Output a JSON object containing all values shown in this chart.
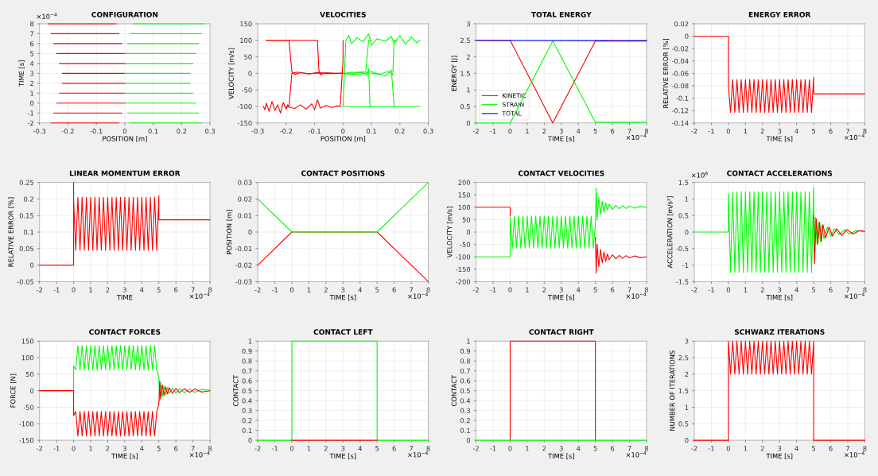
{
  "chart_data": [
    {
      "type": "line",
      "title": "CONFIGURATION",
      "xlabel": "POSITION [m]",
      "ylabel": "TIME [s]",
      "xlim": [
        -0.3,
        0.3
      ],
      "xticks": [
        -0.3,
        -0.2,
        -0.1,
        0,
        0.1,
        0.2,
        0.3
      ],
      "ylim": [
        -2,
        8
      ],
      "yticks": [
        -2,
        -1,
        0,
        1,
        2,
        3,
        4,
        5,
        6,
        7,
        8
      ],
      "grid": true,
      "annotations": [
        "×10$^{−4}$"
      ],
      "series": [
        {
          "color": "#ff0000",
          "x": [
            -0.27,
            -0.03
          ],
          "values": [
            8,
            8
          ]
        },
        {
          "color": "#ff0000",
          "x": [
            -0.26,
            -0.02
          ],
          "values": [
            7,
            7
          ]
        },
        {
          "color": "#ff0000",
          "x": [
            -0.25,
            -0.01
          ],
          "values": [
            6,
            6
          ]
        },
        {
          "color": "#ff0000",
          "x": [
            -0.24,
            0
          ],
          "values": [
            5,
            5
          ]
        },
        {
          "color": "#ff0000",
          "x": [
            -0.23,
            0
          ],
          "values": [
            4,
            4
          ]
        },
        {
          "color": "#ff0000",
          "x": [
            -0.22,
            0
          ],
          "values": [
            3,
            3
          ]
        },
        {
          "color": "#ff0000",
          "x": [
            -0.22,
            0
          ],
          "values": [
            2,
            2
          ]
        },
        {
          "color": "#ff0000",
          "x": [
            -0.23,
            0
          ],
          "values": [
            1,
            1
          ]
        },
        {
          "color": "#ff0000",
          "x": [
            -0.24,
            0
          ],
          "values": [
            0,
            0
          ]
        },
        {
          "color": "#ff0000",
          "x": [
            -0.25,
            -0.01
          ],
          "values": [
            -1,
            -1
          ]
        },
        {
          "color": "#ff0000",
          "x": [
            -0.26,
            -0.02
          ],
          "values": [
            -2,
            -2
          ]
        },
        {
          "color": "#00ff00",
          "x": [
            0.03,
            0.28
          ],
          "values": [
            8,
            8
          ]
        },
        {
          "color": "#00ff00",
          "x": [
            0.02,
            0.27
          ],
          "values": [
            7,
            7
          ]
        },
        {
          "color": "#00ff00",
          "x": [
            0.01,
            0.26
          ],
          "values": [
            6,
            6
          ]
        },
        {
          "color": "#00ff00",
          "x": [
            0,
            0.25
          ],
          "values": [
            5,
            5
          ]
        },
        {
          "color": "#00ff00",
          "x": [
            0,
            0.24
          ],
          "values": [
            4,
            4
          ]
        },
        {
          "color": "#00ff00",
          "x": [
            0,
            0.23
          ],
          "values": [
            3,
            3
          ]
        },
        {
          "color": "#00ff00",
          "x": [
            0,
            0.23
          ],
          "values": [
            2,
            2
          ]
        },
        {
          "color": "#00ff00",
          "x": [
            0,
            0.24
          ],
          "values": [
            1,
            1
          ]
        },
        {
          "color": "#00ff00",
          "x": [
            0,
            0.25
          ],
          "values": [
            0,
            0
          ]
        },
        {
          "color": "#00ff00",
          "x": [
            0.01,
            0.26
          ],
          "values": [
            -1,
            -1
          ]
        },
        {
          "color": "#00ff00",
          "x": [
            0.02,
            0.27
          ],
          "values": [
            -2,
            -2
          ]
        }
      ]
    },
    {
      "type": "line",
      "title": "VELOCITIES",
      "xlabel": "POSITION [m]",
      "ylabel": "VELOCITY [m/s]",
      "xlim": [
        -0.3,
        0.3
      ],
      "xticks": [
        -0.3,
        -0.2,
        -0.1,
        0,
        0.1,
        0.2,
        0.3
      ],
      "ylim": [
        -150,
        150
      ],
      "yticks": [
        -150,
        -100,
        -50,
        0,
        50,
        100,
        150
      ],
      "grid": true,
      "series": [
        {
          "color": "#ff0000",
          "x": [
            -0.27,
            -0.19,
            -0.185,
            -0.18,
            -0.17,
            -0.15,
            -0.12,
            -0.08,
            -0.04,
            0
          ],
          "values": [
            100,
            100,
            50,
            5,
            -3,
            2,
            -1,
            1,
            0,
            0
          ]
        },
        {
          "color": "#ff0000",
          "x": [
            -0.27,
            -0.09,
            -0.085,
            -0.08,
            -0.06,
            -0.03,
            0
          ],
          "values": [
            100,
            100,
            10,
            -4,
            2,
            0,
            0
          ]
        },
        {
          "color": "#ff0000",
          "x": [
            -0.28,
            -0.275,
            -0.27,
            -0.26,
            -0.25,
            -0.24,
            -0.23,
            -0.22,
            -0.21,
            -0.2,
            -0.195,
            -0.19,
            -0.185,
            -0.18,
            -0.16,
            -0.12,
            -0.09,
            -0.05,
            0
          ],
          "values": [
            -100,
            -110,
            -90,
            -115,
            -85,
            -112,
            -95,
            -120,
            -88,
            -108,
            -95,
            -100,
            -50,
            0,
            4,
            -2,
            3,
            -1,
            0
          ]
        },
        {
          "color": "#ff0000",
          "x": [
            -0.2,
            -0.17,
            -0.15,
            -0.13,
            -0.11,
            -0.1,
            -0.09,
            -0.08,
            -0.06,
            -0.04,
            -0.02,
            -0.01,
            0,
            0
          ],
          "values": [
            -100,
            -106,
            -95,
            -108,
            -92,
            -110,
            -80,
            -105,
            -97,
            -103,
            -98,
            -100,
            40,
            100
          ]
        },
        {
          "color": "#00ff00",
          "x": [
            0,
            0.27
          ],
          "values": [
            -100,
            -100
          ]
        },
        {
          "color": "#00ff00",
          "x": [
            0,
            0.03,
            0.06,
            0.085,
            0.09,
            0.095
          ],
          "values": [
            0,
            -2,
            3,
            -3,
            15,
            -100
          ]
        },
        {
          "color": "#00ff00",
          "x": [
            0,
            0.05,
            0.1,
            0.15,
            0.17,
            0.18
          ],
          "values": [
            0,
            -4,
            5,
            -8,
            10,
            -100
          ]
        },
        {
          "color": "#00ff00",
          "x": [
            0,
            0.01,
            0.02,
            0.03,
            0.05,
            0.07,
            0.09,
            0.1,
            0.12,
            0.15,
            0.17,
            0.18,
            0.2,
            0.22,
            0.24,
            0.26,
            0.27
          ],
          "values": [
            -100,
            100,
            115,
            90,
            108,
            95,
            120,
            85,
            105,
            97,
            112,
            90,
            115,
            88,
            110,
            92,
            100
          ]
        },
        {
          "color": "#00ff00",
          "x": [
            0,
            0.04,
            0.08,
            0.09,
            0.1
          ],
          "values": [
            0,
            3,
            5,
            100,
            100
          ]
        },
        {
          "color": "#00ff00",
          "x": [
            0.1,
            0.13,
            0.16,
            0.175,
            0.18,
            0.19
          ],
          "values": [
            0,
            -3,
            6,
            -5,
            100,
            100
          ]
        }
      ]
    },
    {
      "type": "line",
      "title": "TOTAL ENERGY",
      "xlabel": "TIME [s]",
      "ylabel": "ENERGY [J]",
      "xlim": [
        -2,
        8
      ],
      "xticks": [
        -2,
        -1,
        0,
        1,
        2,
        3,
        4,
        5,
        6,
        7,
        8
      ],
      "ylim": [
        0,
        3
      ],
      "yticks": [
        0,
        0.5,
        1,
        1.5,
        2,
        2.5,
        3
      ],
      "grid": true,
      "legend": "bottom left",
      "annotations": [
        "×10$^{−4}$"
      ],
      "series": [
        {
          "name": "KINETIC",
          "color": "#ff0000",
          "x": [
            -2,
            0,
            2.5,
            5,
            8
          ],
          "values": [
            2.5,
            2.5,
            0,
            2.48,
            2.48
          ]
        },
        {
          "name": "STRAIN",
          "color": "#00ff00",
          "x": [
            -2,
            0,
            2.5,
            5,
            8
          ],
          "values": [
            0,
            0,
            2.48,
            0.02,
            0.02
          ]
        },
        {
          "name": "TOTAL",
          "color": "#0000ff",
          "x": [
            -2,
            8
          ],
          "values": [
            2.5,
            2.49
          ]
        }
      ]
    },
    {
      "type": "line",
      "title": "ENERGY ERROR",
      "xlabel": "TIME [s]",
      "ylabel": "RELATIVE ERROR [%]",
      "xlim": [
        -2,
        8
      ],
      "xticks": [
        -2,
        -1,
        0,
        1,
        2,
        3,
        4,
        5,
        6,
        7,
        8
      ],
      "ylim": [
        -0.14,
        0.02
      ],
      "yticks": [
        -0.14,
        -0.12,
        -0.1,
        -0.08,
        -0.06,
        -0.04,
        -0.02,
        0,
        0.02
      ],
      "grid": true,
      "annotations": [
        "×10$^{−4}$"
      ],
      "series": [
        {
          "color": "#ff0000",
          "x": [
            -2,
            0,
            0,
            0.125,
            0.25,
            0.375,
            0.5,
            0.625,
            0.75,
            0.875,
            1,
            1.125,
            1.25,
            1.375,
            1.5,
            1.625,
            1.75,
            1.875,
            2,
            2.125,
            2.25,
            2.375,
            2.5,
            2.625,
            2.75,
            2.875,
            3,
            3.125,
            3.25,
            3.375,
            3.5,
            3.625,
            3.75,
            3.875,
            4,
            4.125,
            4.25,
            4.375,
            4.5,
            4.625,
            4.75,
            4.875,
            5,
            5,
            8
          ],
          "values": [
            0,
            0,
            -0.08,
            -0.123,
            -0.07,
            -0.123,
            -0.07,
            -0.123,
            -0.07,
            -0.123,
            -0.07,
            -0.123,
            -0.07,
            -0.123,
            -0.07,
            -0.123,
            -0.07,
            -0.123,
            -0.07,
            -0.123,
            -0.07,
            -0.123,
            -0.07,
            -0.123,
            -0.07,
            -0.123,
            -0.07,
            -0.123,
            -0.07,
            -0.123,
            -0.07,
            -0.123,
            -0.07,
            -0.123,
            -0.07,
            -0.123,
            -0.07,
            -0.123,
            -0.07,
            -0.123,
            -0.07,
            -0.123,
            -0.066,
            -0.093,
            -0.093
          ]
        }
      ]
    },
    {
      "type": "line",
      "title": "LINEAR MOMENTUM ERROR",
      "xlabel": "TIME",
      "ylabel": "RELATIVE ERROR [%]",
      "xlim": [
        -2,
        8
      ],
      "xticks": [
        -2,
        -1,
        0,
        1,
        2,
        3,
        4,
        5,
        6,
        7,
        8
      ],
      "ylim": [
        -0.05,
        0.25
      ],
      "yticks": [
        -0.05,
        0,
        0.05,
        0.1,
        0.15,
        0.2,
        0.25
      ],
      "grid": true,
      "annotations": [
        "×10$^{−4}$"
      ],
      "series": [
        {
          "color": "#ff0000",
          "x": [
            -2,
            0,
            0,
            0,
            0.125,
            0.25,
            0.375,
            0.5,
            0.625,
            0.75,
            0.875,
            1,
            1.125,
            1.25,
            1.375,
            1.5,
            1.625,
            1.75,
            1.875,
            2,
            2.125,
            2.25,
            2.375,
            2.5,
            2.625,
            2.75,
            2.875,
            3,
            3.125,
            3.25,
            3.375,
            3.5,
            3.625,
            3.75,
            3.875,
            4,
            4.125,
            4.25,
            4.375,
            4.5,
            4.625,
            4.75,
            4.875,
            5,
            5,
            8
          ],
          "values": [
            0,
            0,
            0.25,
            0.2,
            0.045,
            0.205,
            0.045,
            0.205,
            0.045,
            0.205,
            0.045,
            0.205,
            0.045,
            0.205,
            0.045,
            0.205,
            0.045,
            0.205,
            0.045,
            0.205,
            0.045,
            0.205,
            0.045,
            0.205,
            0.045,
            0.205,
            0.045,
            0.205,
            0.045,
            0.205,
            0.045,
            0.205,
            0.045,
            0.205,
            0.045,
            0.205,
            0.045,
            0.205,
            0.045,
            0.205,
            0.045,
            0.205,
            0.045,
            0.21,
            0.137,
            0.137
          ]
        }
      ]
    },
    {
      "type": "line",
      "title": "CONTACT POSITIONS",
      "xlabel": "TIME [s]",
      "ylabel": "POSITION [m]",
      "xlim": [
        -2,
        8
      ],
      "xticks": [
        -2,
        -1,
        0,
        1,
        2,
        3,
        4,
        5,
        6,
        7,
        8
      ],
      "ylim": [
        -0.03,
        0.03
      ],
      "yticks": [
        -0.03,
        -0.02,
        -0.01,
        0,
        0.01,
        0.02,
        0.03
      ],
      "grid": true,
      "annotations": [
        "×10$^{−4}$"
      ],
      "series": [
        {
          "color": "#ff0000",
          "x": [
            -2,
            0,
            5,
            8
          ],
          "values": [
            -0.02,
            0,
            0,
            -0.03
          ]
        },
        {
          "color": "#00ff00",
          "x": [
            -2,
            0,
            5,
            8
          ],
          "values": [
            0.02,
            0,
            0,
            0.03
          ]
        }
      ]
    },
    {
      "type": "line",
      "title": "CONTACT VELOCITIES",
      "xlabel": "TIME [s]",
      "ylabel": "VELOCITY [m/s]",
      "xlim": [
        -2,
        8
      ],
      "xticks": [
        -2,
        -1,
        0,
        1,
        2,
        3,
        4,
        5,
        6,
        7,
        8
      ],
      "ylim": [
        -200,
        200
      ],
      "yticks": [
        -200,
        -150,
        -100,
        -50,
        0,
        50,
        100,
        150,
        200
      ],
      "grid": true,
      "annotations": [
        "×10$^{−4}$"
      ],
      "series": [
        {
          "color": "#ff0000",
          "x": [
            -2,
            0,
            0
          ],
          "values": [
            100,
            100,
            65
          ]
        },
        {
          "color": "#ff0000",
          "x": [
            5,
            5.05,
            5.1,
            5.2,
            5.3,
            5.4,
            5.5,
            5.6,
            5.7,
            5.8,
            6,
            6.2,
            6.4,
            6.6,
            6.8,
            7,
            7.3,
            7.6,
            8
          ],
          "values": [
            -20,
            -165,
            -50,
            -140,
            -70,
            -125,
            -80,
            -118,
            -88,
            -112,
            -92,
            -108,
            -94,
            -106,
            -95,
            -104,
            -96,
            -103,
            -100
          ]
        },
        {
          "color": "#00ff00",
          "x": [
            -2,
            0,
            0,
            0.125,
            0.25,
            0.375,
            0.5,
            0.625,
            0.75,
            0.875,
            1,
            1.125,
            1.25,
            1.375,
            1.5,
            1.625,
            1.75,
            1.875,
            2,
            2.125,
            2.25,
            2.375,
            2.5,
            2.625,
            2.75,
            2.875,
            3,
            3.125,
            3.25,
            3.375,
            3.5,
            3.625,
            3.75,
            3.875,
            4,
            4.125,
            4.25,
            4.375,
            4.5,
            4.625,
            4.75,
            4.875,
            5,
            5.05,
            5.1,
            5.2,
            5.3,
            5.4,
            5.5,
            5.6,
            5.7,
            5.8,
            6,
            6.2,
            6.4,
            6.6,
            6.8,
            7,
            7.3,
            7.6,
            8
          ],
          "values": [
            -100,
            -100,
            60,
            -65,
            65,
            -65,
            65,
            -65,
            65,
            -65,
            65,
            -65,
            65,
            -65,
            65,
            -65,
            65,
            -65,
            65,
            -65,
            65,
            -65,
            65,
            -65,
            65,
            -65,
            65,
            -65,
            65,
            -65,
            65,
            -65,
            65,
            -65,
            65,
            -65,
            65,
            -65,
            65,
            -65,
            65,
            -65,
            30,
            175,
            50,
            140,
            70,
            125,
            80,
            118,
            88,
            112,
            92,
            108,
            94,
            106,
            95,
            104,
            96,
            103,
            100
          ]
        }
      ]
    },
    {
      "type": "line",
      "title": "CONTACT ACCELERATIONS",
      "xlabel": "TIME [s]",
      "ylabel": "ACCELERATION [m/s²]",
      "xlim": [
        -2,
        8
      ],
      "xticks": [
        -2,
        -1,
        0,
        1,
        2,
        3,
        4,
        5,
        6,
        7,
        8
      ],
      "ylim": [
        -1.5,
        1.5
      ],
      "yticks": [
        -1.5,
        -1,
        -0.5,
        0,
        0.5,
        1,
        1.5
      ],
      "grid": true,
      "annotations": [
        "×10$^{−4}$",
        "×10$^{6}$"
      ],
      "series": [
        {
          "color": "#00ff00",
          "x": [
            -2,
            0,
            0,
            0.125,
            0.25,
            0.375,
            0.5,
            0.625,
            0.75,
            0.875,
            1,
            1.125,
            1.25,
            1.375,
            1.5,
            1.625,
            1.75,
            1.875,
            2,
            2.125,
            2.25,
            2.375,
            2.5,
            2.625,
            2.75,
            2.875,
            3,
            3.125,
            3.25,
            3.375,
            3.5,
            3.625,
            3.75,
            3.875,
            4,
            4.125,
            4.25,
            4.375,
            4.5,
            4.625,
            4.75,
            4.875,
            5,
            5.03,
            5.1,
            5.2,
            5.3,
            5.4,
            5.5,
            5.6,
            5.8,
            6,
            6.2,
            6.5,
            6.8,
            7.1,
            7.5,
            8
          ],
          "values": [
            0,
            0,
            1.15,
            -1.22,
            1.22,
            -1.22,
            1.22,
            -1.22,
            1.22,
            -1.22,
            1.22,
            -1.22,
            1.22,
            -1.22,
            1.22,
            -1.22,
            1.22,
            -1.22,
            1.22,
            -1.22,
            1.22,
            -1.22,
            1.22,
            -1.22,
            1.22,
            -1.22,
            1.22,
            -1.22,
            1.22,
            -1.22,
            1.22,
            -1.22,
            1.22,
            -1.22,
            1.22,
            -1.22,
            1.22,
            -1.22,
            1.22,
            -1.22,
            1.22,
            -1.22,
            1.35,
            -0.6,
            0.45,
            -0.4,
            0.3,
            -0.3,
            0.22,
            -0.2,
            0.15,
            -0.13,
            0.1,
            -0.08,
            0.07,
            -0.06,
            0.05,
            0
          ]
        },
        {
          "color": "#ff0000",
          "x": [
            5,
            5.05,
            5.15,
            5.25,
            5.35,
            5.45,
            5.55,
            5.7,
            5.9,
            6.1,
            6.35,
            6.65,
            6.95,
            7.3,
            7.7,
            8
          ],
          "values": [
            0.5,
            -0.95,
            0.4,
            -0.35,
            0.3,
            -0.28,
            0.22,
            -0.18,
            0.15,
            -0.12,
            0.1,
            -0.1,
            0.08,
            -0.06,
            0.05,
            0.02
          ]
        }
      ]
    },
    {
      "type": "line",
      "title": "CONTACT FORCES",
      "xlabel": "TIME [s]",
      "ylabel": "FORCE [N]",
      "xlim": [
        -2,
        8
      ],
      "xticks": [
        -2,
        -1,
        0,
        1,
        2,
        3,
        4,
        5,
        6,
        7,
        8
      ],
      "ylim": [
        -150,
        150
      ],
      "yticks": [
        -150,
        -100,
        -50,
        0,
        50,
        100,
        150
      ],
      "grid": true,
      "annotations": [
        "×10$^{−4}$"
      ],
      "series": [
        {
          "color": "#00ff00",
          "x": [
            -2,
            0,
            0,
            0.125,
            0.25,
            0.375,
            0.5,
            0.625,
            0.75,
            0.875,
            1,
            1.125,
            1.25,
            1.375,
            1.5,
            1.625,
            1.75,
            1.875,
            2,
            2.125,
            2.25,
            2.375,
            2.5,
            2.625,
            2.75,
            2.875,
            3,
            3.125,
            3.25,
            3.375,
            3.5,
            3.625,
            3.75,
            3.875,
            4,
            4.125,
            4.25,
            4.375,
            4.5,
            4.625,
            4.75,
            4.875,
            5,
            5.05,
            5.1,
            5.2,
            5.3,
            5.4,
            5.5,
            5.6,
            5.8,
            6,
            6.2,
            6.5,
            6.8,
            7.1,
            7.5,
            8
          ],
          "values": [
            0,
            0,
            75,
            63,
            137,
            63,
            137,
            63,
            137,
            63,
            137,
            63,
            137,
            63,
            137,
            63,
            137,
            63,
            137,
            63,
            137,
            63,
            137,
            63,
            137,
            63,
            137,
            63,
            137,
            63,
            137,
            63,
            137,
            63,
            137,
            63,
            137,
            63,
            137,
            63,
            137,
            63,
            40,
            -30,
            25,
            -18,
            15,
            -12,
            10,
            -9,
            8,
            -7,
            6,
            -6,
            5,
            -5,
            4,
            1
          ]
        },
        {
          "color": "#ff0000",
          "x": [
            -2,
            0,
            0,
            0.125,
            0.25,
            0.375,
            0.5,
            0.625,
            0.75,
            0.875,
            1,
            1.125,
            1.25,
            1.375,
            1.5,
            1.625,
            1.75,
            1.875,
            2,
            2.125,
            2.25,
            2.375,
            2.5,
            2.625,
            2.75,
            2.875,
            3,
            3.125,
            3.25,
            3.375,
            3.5,
            3.625,
            3.75,
            3.875,
            4,
            4.125,
            4.25,
            4.375,
            4.5,
            4.625,
            4.75,
            4.875,
            5,
            5.05,
            5.1,
            5.2,
            5.3,
            5.4,
            5.5,
            5.6,
            5.8,
            6,
            6.2,
            6.5,
            6.8,
            7.1,
            7.5,
            8
          ],
          "values": [
            0,
            0,
            -75,
            -63,
            -137,
            -63,
            -137,
            -63,
            -137,
            -63,
            -137,
            -63,
            -137,
            -63,
            -137,
            -63,
            -137,
            -63,
            -137,
            -63,
            -137,
            -63,
            -137,
            -63,
            -137,
            -63,
            -137,
            -63,
            -137,
            -63,
            -137,
            -63,
            -137,
            -63,
            -137,
            -63,
            -137,
            -63,
            -137,
            -63,
            -137,
            -63,
            -40,
            30,
            -25,
            18,
            -15,
            12,
            -10,
            9,
            -8,
            7,
            -6,
            6,
            -5,
            5,
            -4,
            0
          ]
        }
      ]
    },
    {
      "type": "line",
      "title": "CONTACT LEFT",
      "xlabel": "TIME [s]",
      "ylabel": "CONTACT",
      "xlim": [
        -2,
        8
      ],
      "xticks": [
        -2,
        -1,
        0,
        1,
        2,
        3,
        4,
        5,
        6,
        7,
        8
      ],
      "ylim": [
        0,
        1
      ],
      "yticks": [
        0,
        0.1,
        0.2,
        0.3,
        0.4,
        0.5,
        0.6,
        0.7,
        0.8,
        0.9,
        1
      ],
      "grid": true,
      "annotations": [
        "×10$^{−4}$"
      ],
      "series": [
        {
          "color": "#00ff00",
          "x": [
            -2,
            0,
            0,
            5,
            5,
            8
          ],
          "values": [
            0,
            0,
            1,
            1,
            0,
            0
          ]
        },
        {
          "color": "#ff0000",
          "x": [
            0,
            5
          ],
          "values": [
            0,
            0
          ]
        }
      ]
    },
    {
      "type": "line",
      "title": "CONTACT RIGHT",
      "xlabel": "TIME [s]",
      "ylabel": "CONTACT",
      "xlim": [
        -2,
        8
      ],
      "xticks": [
        -2,
        -1,
        0,
        1,
        2,
        3,
        4,
        5,
        6,
        7,
        8
      ],
      "ylim": [
        0,
        1
      ],
      "yticks": [
        0,
        0.1,
        0.2,
        0.3,
        0.4,
        0.5,
        0.6,
        0.7,
        0.8,
        0.9,
        1
      ],
      "grid": true,
      "annotations": [
        "×10$^{−4}$"
      ],
      "series": [
        {
          "color": "#ff0000",
          "x": [
            0,
            0,
            5,
            5
          ],
          "values": [
            0,
            1,
            1,
            0
          ]
        },
        {
          "color": "#00ff00",
          "x": [
            -2,
            8
          ],
          "values": [
            0,
            0
          ]
        }
      ]
    },
    {
      "type": "line",
      "title": "SCHWARZ ITERATIONS",
      "xlabel": "TIME [s]",
      "ylabel": "NUMBER OF ITERATIONS",
      "xlim": [
        -2,
        8
      ],
      "xticks": [
        -2,
        -1,
        0,
        1,
        2,
        3,
        4,
        5,
        6,
        7,
        8
      ],
      "ylim": [
        0,
        3
      ],
      "yticks": [
        0,
        0.5,
        1,
        1.5,
        2,
        2.5,
        3
      ],
      "grid": true,
      "annotations": [
        "×10$^{−4}$"
      ],
      "series": [
        {
          "color": "#ff0000",
          "x": [
            -2,
            0,
            0,
            0.125,
            0.25,
            0.375,
            0.5,
            0.625,
            0.75,
            0.875,
            1,
            1.125,
            1.25,
            1.375,
            1.5,
            1.625,
            1.75,
            1.875,
            2,
            2.125,
            2.25,
            2.375,
            2.5,
            2.625,
            2.75,
            2.875,
            3,
            3.125,
            3.25,
            3.375,
            3.5,
            3.625,
            3.75,
            3.875,
            4,
            4.125,
            4.25,
            4.375,
            4.5,
            4.625,
            4.75,
            4.875,
            5,
            5,
            8
          ],
          "values": [
            0,
            0,
            3,
            2,
            3,
            2,
            3,
            2,
            3,
            2,
            3,
            2,
            3,
            2,
            3,
            2,
            3,
            2,
            3,
            2,
            3,
            2,
            3,
            2,
            3,
            2,
            3,
            2,
            3,
            2,
            3,
            2,
            3,
            2,
            3,
            2,
            3,
            2,
            3,
            2,
            3,
            2,
            3,
            0,
            0
          ]
        }
      ]
    }
  ]
}
